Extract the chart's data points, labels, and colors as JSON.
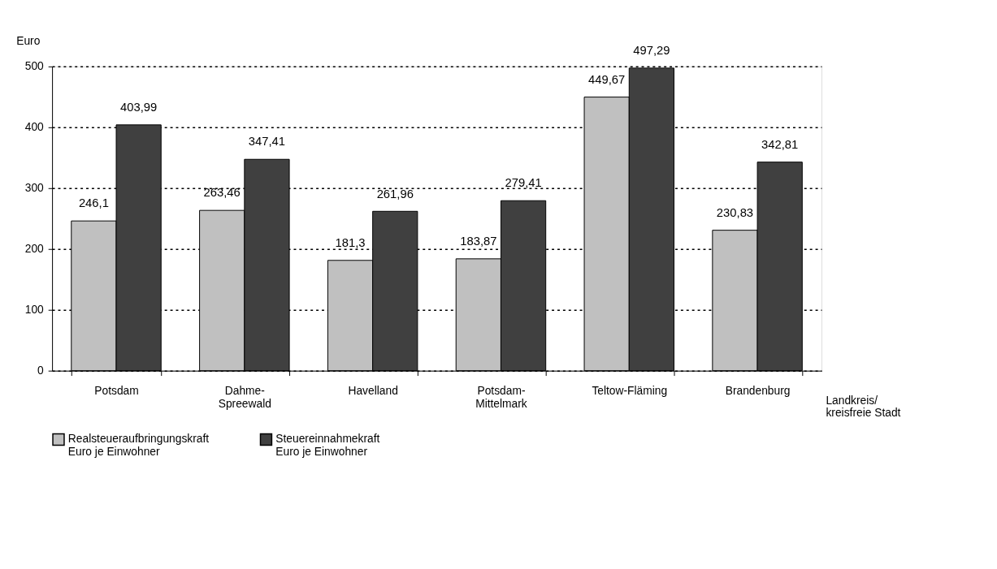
{
  "chart_data": {
    "type": "bar",
    "ylabel": "Euro",
    "xlabel": "Landkreis/\nkreisfreie Stadt",
    "categories": [
      "Potsdam",
      "Dahme-\nSpreewald",
      "Havelland",
      "Potsdam-\nMittelmark",
      "Teltow-Fläming",
      "Brandenburg"
    ],
    "series": [
      {
        "name": "Realsteueraufbringungskraft\nEuro je Einwohner",
        "color": "#c0c0c0",
        "values": [
          246.1,
          263.46,
          181.3,
          183.87,
          449.67,
          230.83
        ],
        "value_labels": [
          "246,1",
          "263,46",
          "181,3",
          "183,87",
          "449,67",
          "230,83"
        ]
      },
      {
        "name": "Steuereinnahmekraft\nEuro je Einwohner",
        "color": "#404040",
        "values": [
          403.99,
          347.41,
          261.96,
          279.41,
          497.29,
          342.81
        ],
        "value_labels": [
          "403,99",
          "347,41",
          "261,96",
          "279,41",
          "497,29",
          "342,81"
        ]
      }
    ],
    "ylim": [
      0,
      500
    ],
    "yticks": [
      0,
      100,
      200,
      300,
      400,
      500
    ],
    "grid": "y",
    "legend": "bottom"
  }
}
